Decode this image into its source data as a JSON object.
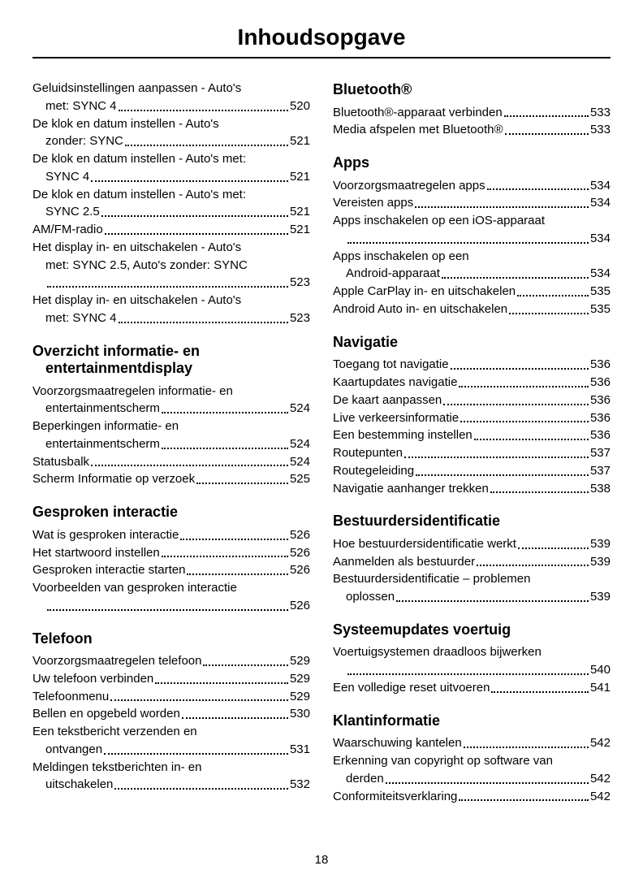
{
  "title": "Inhoudsopgave",
  "pageNumber": "18",
  "left": {
    "sections": [
      {
        "heading": "",
        "entries": [
          {
            "label": "Geluidsinstellingen aanpassen - Auto's",
            "cont": "met: SYNC 4",
            "page": "520"
          },
          {
            "label": "De klok en datum instellen - Auto's",
            "cont": "zonder: SYNC",
            "page": "521"
          },
          {
            "label": "De klok en datum instellen - Auto's met:",
            "cont": "SYNC 4",
            "page": "521"
          },
          {
            "label": "De klok en datum instellen - Auto's met:",
            "cont": "SYNC 2.5",
            "page": "521"
          },
          {
            "label": "AM/FM-radio",
            "page": "521"
          },
          {
            "label": "Het display in- en uitschakelen - Auto's",
            "cont": "met: SYNC 2.5, Auto's zonder: SYNC",
            "contNoDots": true,
            "cont2": "",
            "page": "523"
          },
          {
            "label": "Het display in- en uitschakelen - Auto's",
            "cont": "met: SYNC 4",
            "page": "523"
          }
        ]
      },
      {
        "heading": "Overzicht informatie- en",
        "headingCont": "entertainmentdisplay",
        "entries": [
          {
            "label": "Voorzorgsmaatregelen informatie- en",
            "cont": "entertainmentscherm",
            "page": "524"
          },
          {
            "label": "Beperkingen informatie- en",
            "cont": "entertainmentscherm",
            "page": "524"
          },
          {
            "label": "Statusbalk",
            "page": "524"
          },
          {
            "label": "Scherm Informatie op verzoek",
            "page": "525"
          }
        ]
      },
      {
        "heading": "Gesproken interactie",
        "entries": [
          {
            "label": "Wat is gesproken interactie",
            "page": "526"
          },
          {
            "label": "Het startwoord instellen",
            "page": "526"
          },
          {
            "label": "Gesproken interactie starten",
            "page": "526"
          },
          {
            "label": "Voorbeelden van gesproken interactie",
            "cont": "",
            "page": "526"
          }
        ]
      },
      {
        "heading": "Telefoon",
        "entries": [
          {
            "label": "Voorzorgsmaatregelen telefoon",
            "page": "529"
          },
          {
            "label": "Uw telefoon verbinden",
            "page": "529"
          },
          {
            "label": "Telefoonmenu",
            "page": "529"
          },
          {
            "label": "Bellen en opgebeld worden",
            "page": "530"
          },
          {
            "label": "Een tekstbericht verzenden en",
            "cont": "ontvangen",
            "page": "531"
          },
          {
            "label": "Meldingen tekstberichten in- en",
            "cont": "uitschakelen",
            "page": "532"
          }
        ]
      }
    ]
  },
  "right": {
    "sections": [
      {
        "heading": "Bluetooth®",
        "first": true,
        "entries": [
          {
            "label": "Bluetooth®-apparaat verbinden",
            "page": "533"
          },
          {
            "label": "Media afspelen met Bluetooth®",
            "page": "533"
          }
        ]
      },
      {
        "heading": "Apps",
        "entries": [
          {
            "label": "Voorzorgsmaatregelen apps",
            "page": "534"
          },
          {
            "label": "Vereisten apps",
            "page": "534"
          },
          {
            "label": "Apps inschakelen op een iOS-apparaat",
            "cont": "",
            "page": "534"
          },
          {
            "label": "Apps inschakelen op een",
            "cont": "Android-apparaat",
            "page": "534"
          },
          {
            "label": "Apple CarPlay in- en uitschakelen",
            "page": "535"
          },
          {
            "label": "Android Auto in- en uitschakelen",
            "page": "535"
          }
        ]
      },
      {
        "heading": "Navigatie",
        "entries": [
          {
            "label": "Toegang tot navigatie",
            "page": "536"
          },
          {
            "label": "Kaartupdates navigatie",
            "page": "536"
          },
          {
            "label": "De kaart aanpassen",
            "page": "536"
          },
          {
            "label": "Live verkeersinformatie",
            "page": "536"
          },
          {
            "label": "Een bestemming instellen",
            "page": "536"
          },
          {
            "label": "Routepunten",
            "page": "537"
          },
          {
            "label": "Routegeleiding",
            "page": "537"
          },
          {
            "label": "Navigatie aanhanger trekken",
            "page": "538"
          }
        ]
      },
      {
        "heading": "Bestuurdersidentificatie",
        "entries": [
          {
            "label": "Hoe bestuurdersidentificatie werkt",
            "page": "539"
          },
          {
            "label": "Aanmelden als bestuurder",
            "page": "539"
          },
          {
            "label": "Bestuurdersidentificatie – problemen",
            "cont": "oplossen",
            "page": "539"
          }
        ]
      },
      {
        "heading": "Systeemupdates voertuig",
        "entries": [
          {
            "label": "Voertuigsystemen draadloos bijwerken",
            "cont": "",
            "page": "540"
          },
          {
            "label": "Een volledige reset uitvoeren",
            "page": "541"
          }
        ]
      },
      {
        "heading": "Klantinformatie",
        "entries": [
          {
            "label": "Waarschuwing kantelen",
            "page": "542"
          },
          {
            "label": "Erkenning van copyright op software van",
            "cont": "derden",
            "page": "542"
          },
          {
            "label": "Conformiteitsverklaring",
            "page": "542"
          }
        ]
      }
    ]
  }
}
